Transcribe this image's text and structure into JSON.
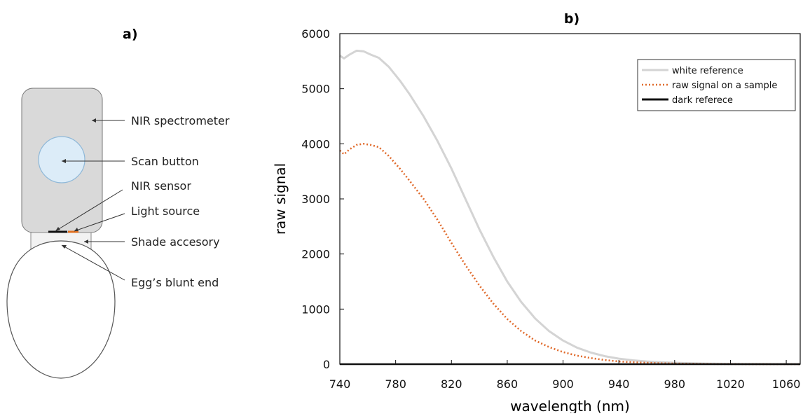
{
  "panel_a": {
    "label": "a)",
    "callouts": {
      "spectrometer": "NIR spectrometer",
      "scan_button": "Scan button",
      "nir_sensor": "NIR sensor",
      "light_source": "Light source",
      "shade": "Shade accesory",
      "egg": "Egg’s blunt end"
    },
    "colors": {
      "device_fill": "#d9d9d9",
      "button_fill": "#dcecf8",
      "button_stroke": "#8fb8d8",
      "light_source": "#e07020"
    }
  },
  "chart_data": {
    "type": "line",
    "title": "b)",
    "xlabel": "wavelength (nm)",
    "ylabel": "raw signal",
    "xlim": [
      740,
      1070
    ],
    "ylim": [
      0,
      6000
    ],
    "xticks": [
      740,
      780,
      820,
      860,
      900,
      940,
      980,
      1020,
      1060
    ],
    "yticks": [
      0,
      1000,
      2000,
      3000,
      4000,
      5000,
      6000
    ],
    "legend_position": "top-right",
    "series": [
      {
        "name": "white reference",
        "color": "#d4d4d4",
        "style": "solid",
        "x": [
          740,
          743,
          747,
          752,
          757,
          762,
          768,
          775,
          783,
          790,
          800,
          810,
          820,
          830,
          840,
          850,
          860,
          870,
          880,
          890,
          900,
          910,
          920,
          930,
          940,
          950,
          960,
          970,
          980,
          990,
          1000,
          1010,
          1020,
          1030,
          1040,
          1050,
          1060,
          1070
        ],
        "y": [
          5600,
          5550,
          5620,
          5690,
          5680,
          5620,
          5560,
          5400,
          5150,
          4900,
          4500,
          4050,
          3550,
          3000,
          2450,
          1950,
          1500,
          1130,
          830,
          600,
          430,
          300,
          210,
          145,
          100,
          70,
          50,
          35,
          25,
          18,
          12,
          8,
          5,
          3,
          2,
          1,
          1,
          0
        ]
      },
      {
        "name": "raw signal on a sample",
        "color": "#e06a2b",
        "style": "dotted",
        "x": [
          740,
          743,
          747,
          752,
          757,
          762,
          768,
          775,
          783,
          790,
          800,
          810,
          820,
          830,
          840,
          850,
          860,
          870,
          880,
          890,
          900,
          910,
          920,
          930,
          940,
          950,
          960,
          970,
          980,
          990,
          1000,
          1010,
          1020,
          1030,
          1040,
          1050,
          1060,
          1070
        ],
        "y": [
          3880,
          3810,
          3900,
          3980,
          4000,
          3980,
          3940,
          3780,
          3550,
          3330,
          3000,
          2620,
          2200,
          1800,
          1430,
          1100,
          820,
          600,
          430,
          310,
          220,
          155,
          110,
          75,
          50,
          35,
          25,
          17,
          12,
          8,
          5,
          3,
          2,
          1,
          1,
          0,
          0,
          0
        ]
      },
      {
        "name": "dark referece",
        "color": "#111111",
        "style": "solid",
        "x": [
          740,
          1070
        ],
        "y": [
          0,
          0
        ]
      }
    ]
  }
}
